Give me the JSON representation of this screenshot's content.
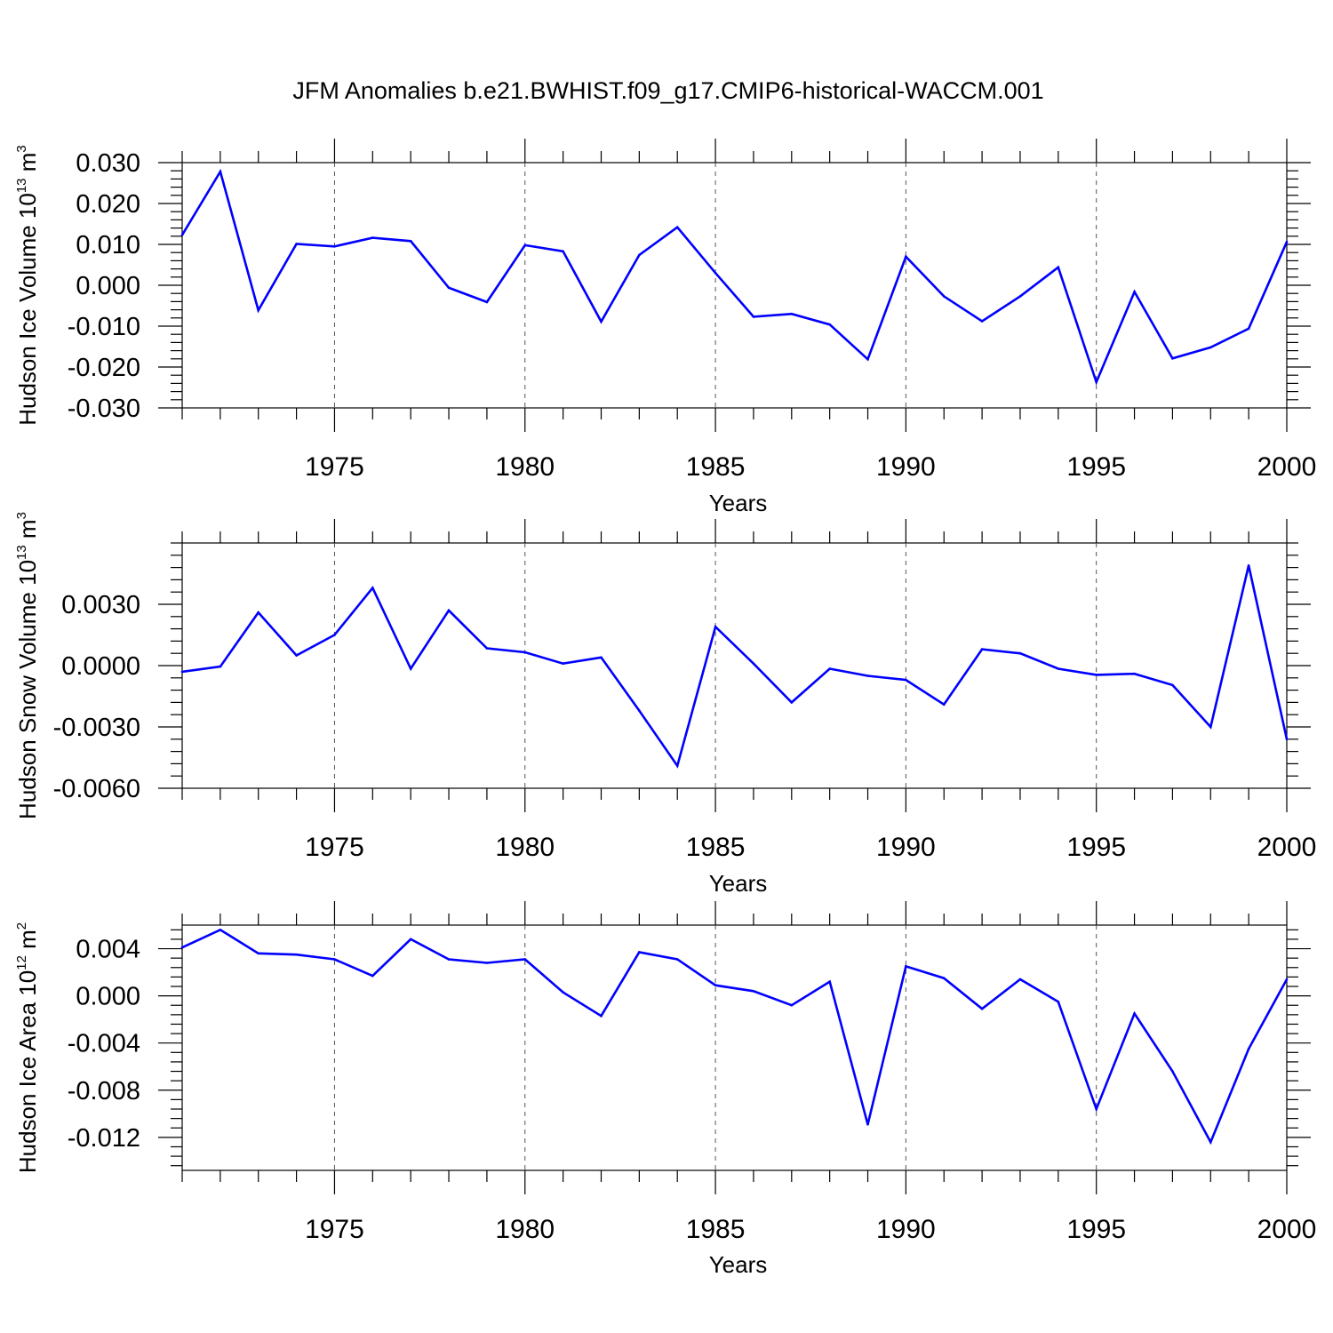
{
  "title": "JFM Anomalies b.e21.BWHIST.f09_g17.CMIP6-historical-WACCM.001",
  "colors": {
    "series": "#0000ff",
    "axis": "#000000",
    "grid": "#555555"
  },
  "chart_data": [
    {
      "type": "line",
      "title": "JFM Anomalies b.e21.BWHIST.f09_g17.CMIP6-historical-WACCM.001",
      "xlabel": "Years",
      "ylabel": {
        "text": "Hudson Ice Volume 10",
        "exponent": "13",
        "unit": " m",
        "unit_exponent": "3"
      },
      "xlim": [
        1971,
        2000
      ],
      "ylim": [
        -0.03,
        0.03
      ],
      "xticks": [
        "1975",
        "1980",
        "1985",
        "1990",
        "1995",
        "2000"
      ],
      "yticks": [
        "0.030",
        "0.020",
        "0.010",
        "0.000",
        "-0.010",
        "-0.020",
        "-0.030"
      ],
      "grid": "vertical dashed at major x ticks",
      "x": [
        1971,
        1972,
        1973,
        1974,
        1975,
        1976,
        1977,
        1978,
        1979,
        1980,
        1981,
        1982,
        1983,
        1984,
        1985,
        1986,
        1987,
        1988,
        1989,
        1990,
        1991,
        1992,
        1993,
        1994,
        1995,
        1996,
        1997,
        1998,
        1999,
        2000
      ],
      "values": [
        0.0123,
        0.0278,
        -0.0061,
        0.0101,
        0.0095,
        0.0116,
        0.0108,
        -0.0006,
        -0.0041,
        0.0098,
        0.0083,
        -0.0089,
        0.0074,
        0.0142,
        0.003,
        -0.0077,
        -0.007,
        -0.0096,
        -0.0181,
        0.007,
        -0.0027,
        -0.0088,
        -0.0027,
        0.0044,
        -0.0237,
        -0.0016,
        -0.0179,
        -0.0152,
        -0.0106,
        0.0106
      ]
    },
    {
      "type": "line",
      "xlabel": "Years",
      "ylabel": {
        "text": "Hudson Snow Volume 10",
        "exponent": "13",
        "unit": " m",
        "unit_exponent": "3"
      },
      "xlim": [
        1971,
        2000
      ],
      "ylim": [
        -0.006,
        0.006
      ],
      "xticks": [
        "1975",
        "1980",
        "1985",
        "1990",
        "1995",
        "2000"
      ],
      "yticks": [
        "0.0030",
        "0.0000",
        "-0.0030",
        "-0.0060"
      ],
      "grid": "vertical dashed at major x ticks",
      "x": [
        1971,
        1972,
        1973,
        1974,
        1975,
        1976,
        1977,
        1978,
        1979,
        1980,
        1981,
        1982,
        1983,
        1984,
        1985,
        1986,
        1987,
        1988,
        1989,
        1990,
        1991,
        1992,
        1993,
        1994,
        1995,
        1996,
        1997,
        1998,
        1999,
        2000
      ],
      "values": [
        -0.0003,
        -5e-05,
        0.0026,
        0.0005,
        0.0015,
        0.0038,
        -0.00015,
        0.0027,
        0.00085,
        0.00065,
        0.0001,
        0.0004,
        -0.0022,
        -0.0049,
        0.0019,
        0.0001,
        -0.0018,
        -0.00015,
        -0.0005,
        -0.0007,
        -0.0019,
        0.0008,
        0.0006,
        -0.00015,
        -0.00045,
        -0.0004,
        -0.00095,
        -0.003,
        0.0049,
        -0.0036
      ]
    },
    {
      "type": "line",
      "xlabel": "Years",
      "ylabel": {
        "text": "Hudson Ice Area 10",
        "exponent": "12",
        "unit": " m",
        "unit_exponent": "2"
      },
      "xlim": [
        1971,
        2000
      ],
      "ylim": [
        -0.0148,
        0.006
      ],
      "xticks": [
        "1975",
        "1980",
        "1985",
        "1990",
        "1995",
        "2000"
      ],
      "yticks": [
        "0.004",
        "0.000",
        "-0.004",
        "-0.008",
        "-0.012"
      ],
      "grid": "vertical dashed at major x ticks",
      "x": [
        1971,
        1972,
        1973,
        1974,
        1975,
        1976,
        1977,
        1978,
        1979,
        1980,
        1981,
        1982,
        1983,
        1984,
        1985,
        1986,
        1987,
        1988,
        1989,
        1990,
        1991,
        1992,
        1993,
        1994,
        1995,
        1996,
        1997,
        1998,
        1999,
        2000
      ],
      "values": [
        0.0041,
        0.0056,
        0.0036,
        0.0035,
        0.0031,
        0.0017,
        0.0048,
        0.0031,
        0.0028,
        0.0031,
        0.0003,
        -0.0017,
        0.0037,
        0.0031,
        0.0009,
        0.0004,
        -0.0008,
        0.0012,
        -0.0109,
        0.0025,
        0.0015,
        -0.0011,
        0.0014,
        -0.0005,
        -0.0096,
        -0.0015,
        -0.0064,
        -0.0124,
        -0.0045,
        0.0014
      ]
    }
  ]
}
